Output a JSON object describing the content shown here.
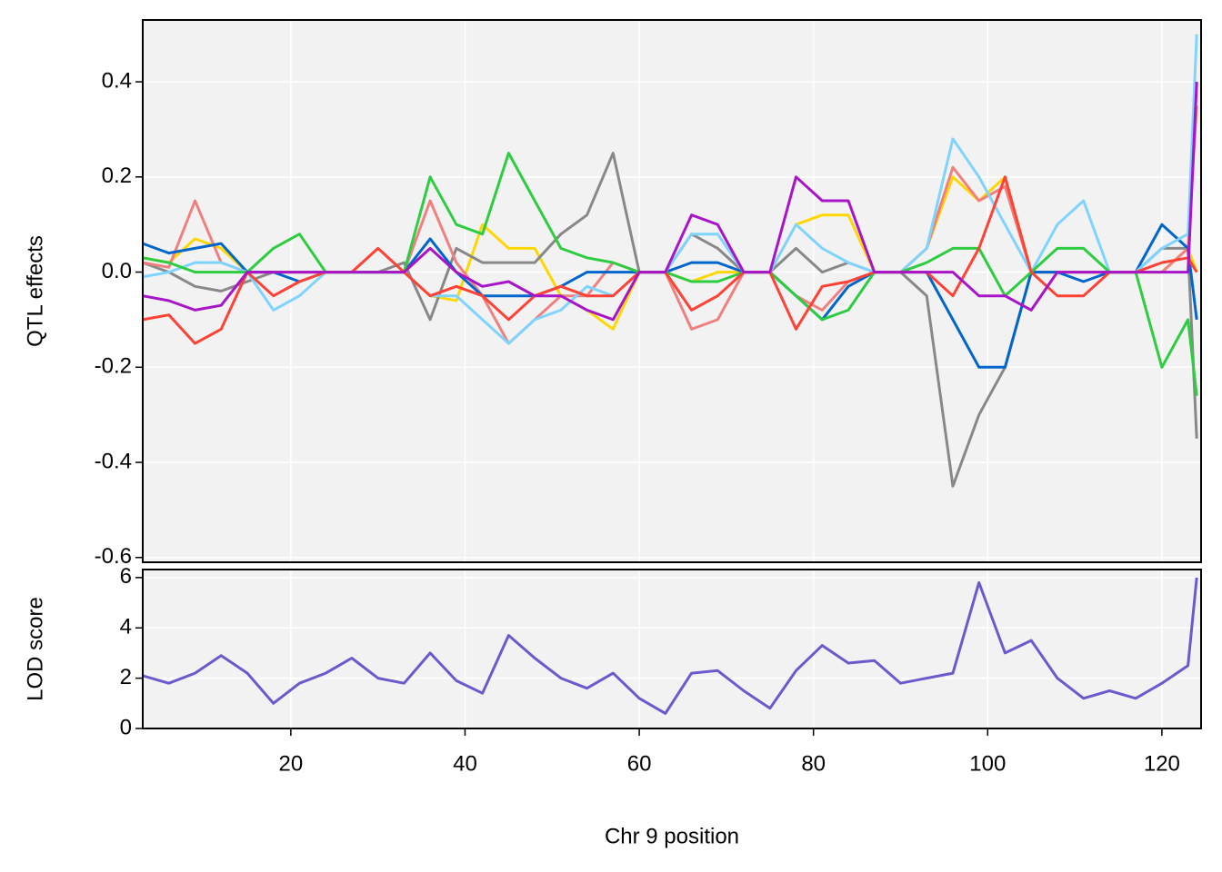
{
  "chart_data": [
    {
      "type": "line",
      "ylabel": "QTL effects",
      "x": [
        3,
        6,
        9,
        12,
        15,
        18,
        21,
        24,
        27,
        30,
        33,
        36,
        39,
        42,
        45,
        48,
        51,
        54,
        57,
        60,
        63,
        66,
        69,
        72,
        75,
        78,
        81,
        84,
        87,
        90,
        93,
        96,
        99,
        102,
        105,
        108,
        111,
        114,
        117,
        120,
        123,
        124
      ],
      "xlim": [
        3,
        124.5
      ],
      "xticks": [
        20,
        40,
        60,
        80,
        100,
        120
      ],
      "ylim": [
        -0.61,
        0.53
      ],
      "yticks": [
        -0.6,
        -0.4,
        -0.2,
        {
          "value": 0,
          "label": "0.0"
        },
        0.2,
        0.4
      ],
      "grid": true,
      "series": [
        {
          "color": "#ffd700",
          "values": [
            0.03,
            0.02,
            0.07,
            0.05,
            0,
            0,
            0,
            0,
            0,
            0,
            0,
            -0.05,
            -0.06,
            0.1,
            0.05,
            0.05,
            -0.05,
            -0.08,
            -0.12,
            0,
            0,
            -0.02,
            0,
            0,
            0,
            0.1,
            0.12,
            0.12,
            0,
            0,
            0.05,
            0.2,
            0.15,
            0.2,
            0,
            0,
            0,
            0,
            0,
            0,
            0.05,
            0
          ]
        },
        {
          "color": "#888888",
          "values": [
            0.02,
            0,
            -0.03,
            -0.04,
            -0.02,
            0,
            0,
            0,
            0,
            0,
            0.02,
            -0.1,
            0.05,
            0.02,
            0.02,
            0.02,
            0.08,
            0.12,
            0.25,
            0,
            0,
            0.08,
            0.05,
            0,
            0,
            0.05,
            0,
            0.02,
            0,
            0,
            -0.05,
            -0.45,
            -0.3,
            -0.2,
            0,
            0,
            0,
            0,
            0,
            0.05,
            0.05,
            -0.35
          ]
        },
        {
          "color": "#f08080",
          "values": [
            0.02,
            0.01,
            0.15,
            0.02,
            0,
            0,
            0,
            0,
            0,
            0,
            0,
            0.15,
            0.02,
            -0.05,
            -0.15,
            -0.1,
            -0.05,
            -0.05,
            0.02,
            0,
            0,
            -0.12,
            -0.1,
            0,
            0,
            -0.05,
            -0.08,
            -0.02,
            0,
            0,
            0.05,
            0.22,
            0.15,
            0.18,
            0,
            0,
            0,
            0,
            0,
            0,
            0.05,
            0.35
          ]
        },
        {
          "color": "#0066cc",
          "values": [
            0.06,
            0.04,
            0.05,
            0.06,
            0,
            0,
            -0.02,
            0,
            0,
            0,
            0,
            0.07,
            0,
            -0.05,
            -0.05,
            -0.05,
            -0.03,
            0,
            0,
            0,
            0,
            0.02,
            0.02,
            0,
            0,
            -0.05,
            -0.1,
            -0.03,
            0,
            0,
            0,
            -0.1,
            -0.2,
            -0.2,
            0,
            0,
            -0.02,
            0,
            0,
            0.1,
            0.05,
            -0.1
          ]
        },
        {
          "color": "#7fd4ff",
          "values": [
            -0.01,
            0,
            0.02,
            0.02,
            0,
            -0.08,
            -0.05,
            0,
            0,
            0,
            0,
            -0.05,
            -0.05,
            -0.1,
            -0.15,
            -0.1,
            -0.08,
            -0.03,
            -0.05,
            0,
            0,
            0.08,
            0.08,
            0,
            0,
            0.1,
            0.05,
            0.02,
            0,
            0,
            0.05,
            0.28,
            0.2,
            0.1,
            0,
            0.1,
            0.15,
            0,
            0,
            0.05,
            0.08,
            0.5
          ]
        },
        {
          "color": "#2ecc40",
          "values": [
            0.03,
            0.02,
            0,
            0,
            0,
            0.05,
            0.08,
            0,
            0,
            0,
            0,
            0.2,
            0.1,
            0.08,
            0.25,
            0.15,
            0.05,
            0.03,
            0.02,
            0,
            0,
            -0.02,
            -0.02,
            0,
            0,
            -0.05,
            -0.1,
            -0.08,
            0,
            0,
            0.02,
            0.05,
            0.05,
            -0.05,
            0,
            0.05,
            0.05,
            0,
            0,
            -0.2,
            -0.1,
            -0.26
          ]
        },
        {
          "color": "#ff4136",
          "values": [
            -0.1,
            -0.09,
            -0.15,
            -0.12,
            0,
            -0.05,
            -0.02,
            0,
            0,
            0.05,
            0,
            -0.05,
            -0.03,
            -0.05,
            -0.1,
            -0.05,
            -0.03,
            -0.05,
            -0.05,
            0,
            0,
            -0.08,
            -0.05,
            0,
            0,
            -0.12,
            -0.03,
            -0.02,
            0,
            0,
            0,
            -0.05,
            0.05,
            0.2,
            0,
            -0.05,
            -0.05,
            0,
            0,
            0.02,
            0.03,
            0
          ]
        },
        {
          "color": "#a814c8",
          "values": [
            -0.05,
            -0.06,
            -0.08,
            -0.07,
            0,
            0,
            0,
            0,
            0,
            0,
            0,
            0.05,
            0,
            -0.03,
            -0.02,
            -0.05,
            -0.05,
            -0.08,
            -0.1,
            0,
            0,
            0.12,
            0.1,
            0,
            0,
            0.2,
            0.15,
            0.15,
            0,
            0,
            0,
            0,
            -0.05,
            -0.05,
            -0.08,
            0,
            0,
            0,
            0,
            0,
            0,
            0.4
          ]
        }
      ]
    },
    {
      "type": "line",
      "ylabel": "LOD score",
      "xlabel": "Chr 9 position",
      "x": [
        3,
        6,
        9,
        12,
        15,
        18,
        21,
        24,
        27,
        30,
        33,
        36,
        39,
        42,
        45,
        48,
        51,
        54,
        57,
        60,
        63,
        66,
        69,
        72,
        75,
        78,
        81,
        84,
        87,
        90,
        93,
        96,
        99,
        102,
        105,
        108,
        111,
        114,
        117,
        120,
        123,
        124
      ],
      "xlim": [
        3,
        124.5
      ],
      "xticks": [
        20,
        40,
        60,
        80,
        100,
        120
      ],
      "ylim": [
        0,
        6.32
      ],
      "yticks": [
        0,
        2,
        4,
        6
      ],
      "grid": true,
      "series": [
        {
          "color": "#6a5acd",
          "values": [
            2.1,
            1.8,
            2.2,
            2.9,
            2.2,
            1.0,
            1.8,
            2.2,
            2.8,
            2.0,
            1.8,
            3.0,
            1.9,
            1.4,
            3.7,
            2.8,
            2.0,
            1.6,
            2.2,
            1.2,
            0.6,
            2.2,
            2.3,
            1.5,
            0.8,
            2.3,
            3.3,
            2.6,
            2.7,
            1.8,
            2.0,
            2.2,
            5.8,
            3.0,
            3.5,
            2.0,
            1.2,
            1.5,
            1.2,
            1.8,
            2.5,
            6.0
          ]
        }
      ]
    }
  ]
}
